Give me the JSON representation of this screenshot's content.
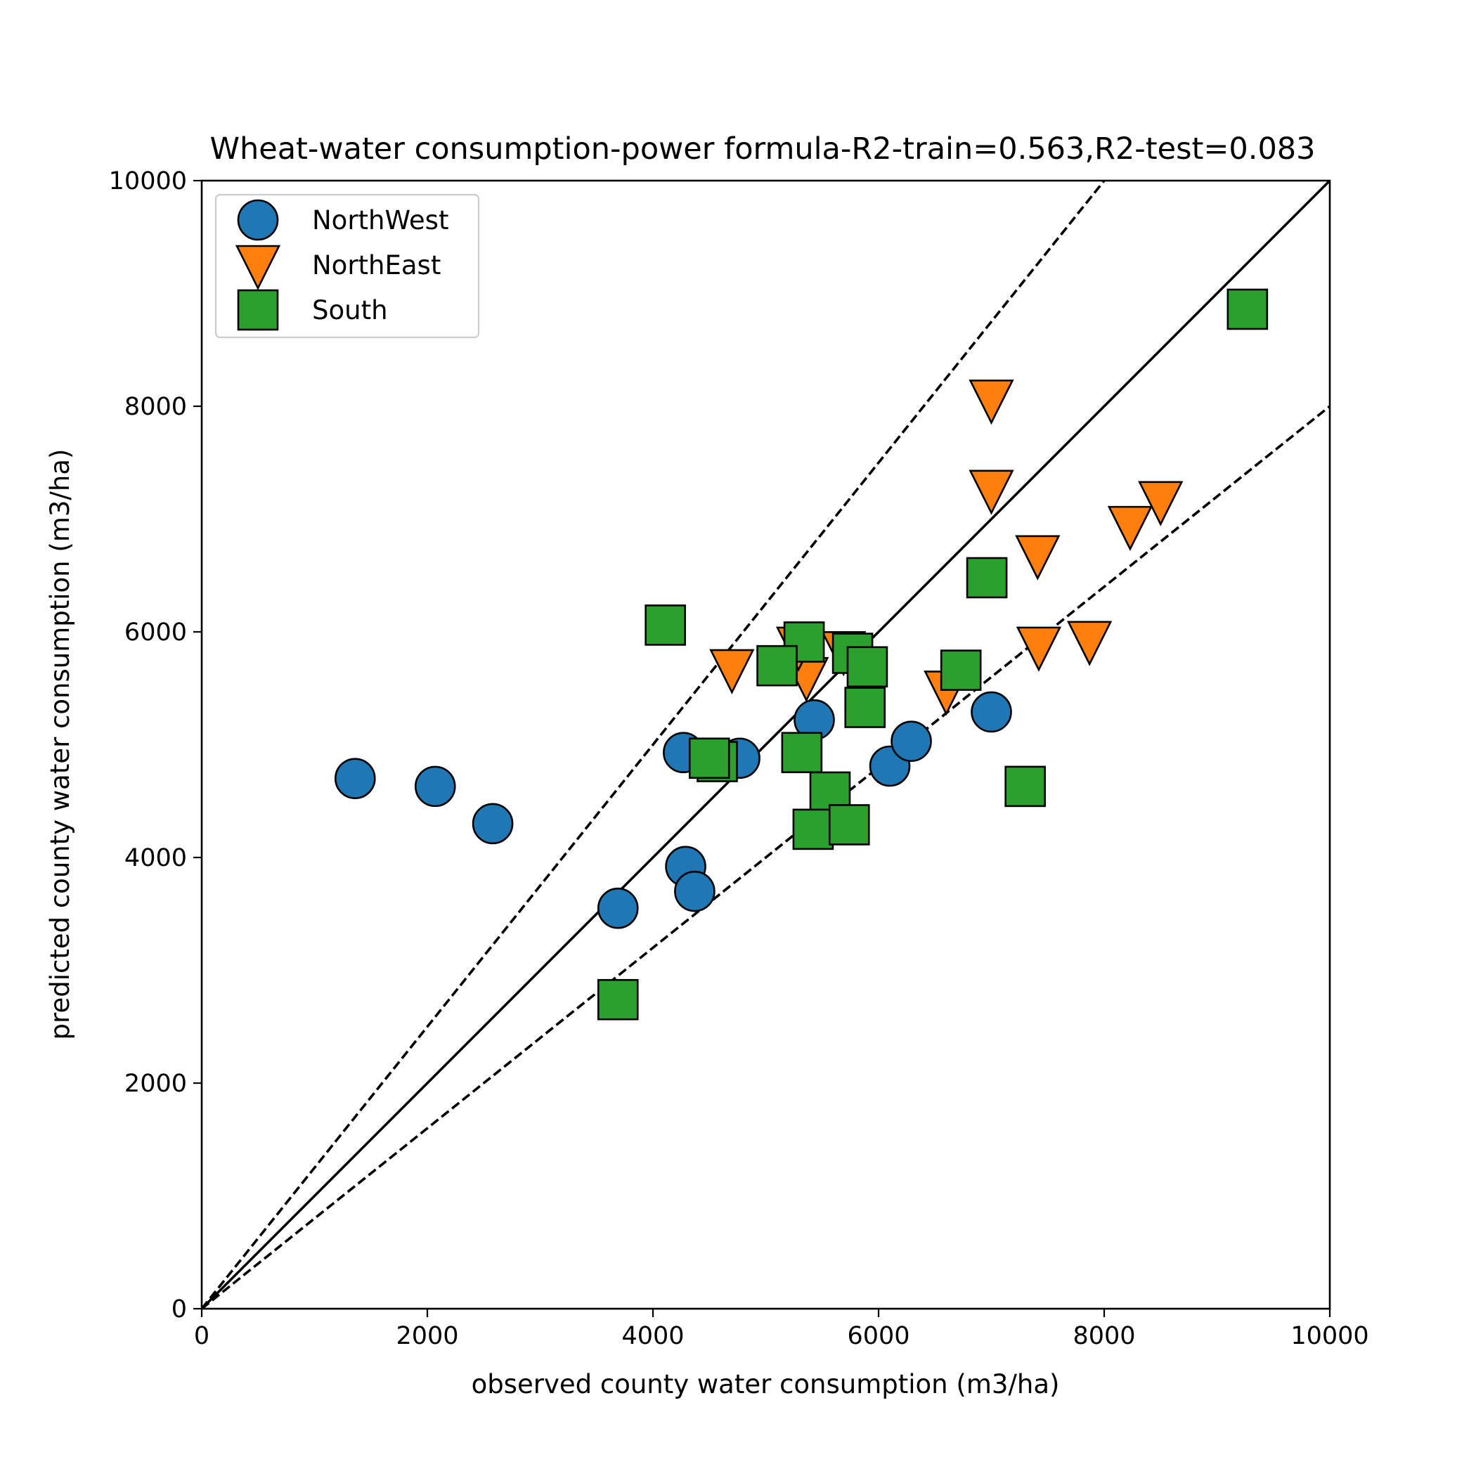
{
  "chart_data": {
    "type": "scatter",
    "title": "Wheat-water consumption-power formula-R2-train=0.563,R2-test=0.083",
    "xlabel": "observed county water consumption (m3/ha)",
    "ylabel": "predicted county water consumption (m3/ha)",
    "xlim": [
      0,
      10000
    ],
    "ylim": [
      0,
      10000
    ],
    "xticks": [
      "0",
      "2000",
      "4000",
      "6000",
      "8000",
      "10000"
    ],
    "yticks": [
      "0",
      "2000",
      "4000",
      "6000",
      "8000",
      "10000"
    ],
    "grid": false,
    "legend_position": "top-left",
    "reference_lines": [
      {
        "style": "solid",
        "slope": 1.0
      },
      {
        "style": "dashed",
        "slope": 1.25
      },
      {
        "style": "dashed",
        "slope": 0.8
      }
    ],
    "series": [
      {
        "name": "NorthWest",
        "marker": "circle",
        "color": "#1f77b4",
        "points": [
          [
            1360,
            4700
          ],
          [
            2070,
            4630
          ],
          [
            2580,
            4300
          ],
          [
            3690,
            3550
          ],
          [
            4290,
            3920
          ],
          [
            4370,
            3700
          ],
          [
            4270,
            4930
          ],
          [
            4770,
            4880
          ],
          [
            5430,
            5220
          ],
          [
            6100,
            4810
          ],
          [
            6290,
            5030
          ],
          [
            7000,
            5290
          ]
        ]
      },
      {
        "name": "NorthEast",
        "marker": "triangle-down",
        "color": "#ff7f0e",
        "points": [
          [
            4700,
            5670
          ],
          [
            5360,
            5600
          ],
          [
            5290,
            5870
          ],
          [
            5690,
            5830
          ],
          [
            6600,
            5480
          ],
          [
            7000,
            8060
          ],
          [
            7000,
            7260
          ],
          [
            7410,
            6680
          ],
          [
            7420,
            5870
          ],
          [
            7870,
            5920
          ],
          [
            8230,
            6940
          ],
          [
            8500,
            7160
          ]
        ]
      },
      {
        "name": "South",
        "marker": "square",
        "color": "#2ca02c",
        "points": [
          [
            9270,
            8860
          ],
          [
            6960,
            6480
          ],
          [
            4110,
            6060
          ],
          [
            5340,
            5910
          ],
          [
            5770,
            5810
          ],
          [
            5100,
            5700
          ],
          [
            5900,
            5690
          ],
          [
            6730,
            5660
          ],
          [
            5880,
            5330
          ],
          [
            4570,
            4850
          ],
          [
            4500,
            4880
          ],
          [
            5320,
            4930
          ],
          [
            5570,
            4580
          ],
          [
            7300,
            4630
          ],
          [
            5420,
            4250
          ],
          [
            5740,
            4290
          ],
          [
            3690,
            2740
          ]
        ]
      }
    ]
  }
}
